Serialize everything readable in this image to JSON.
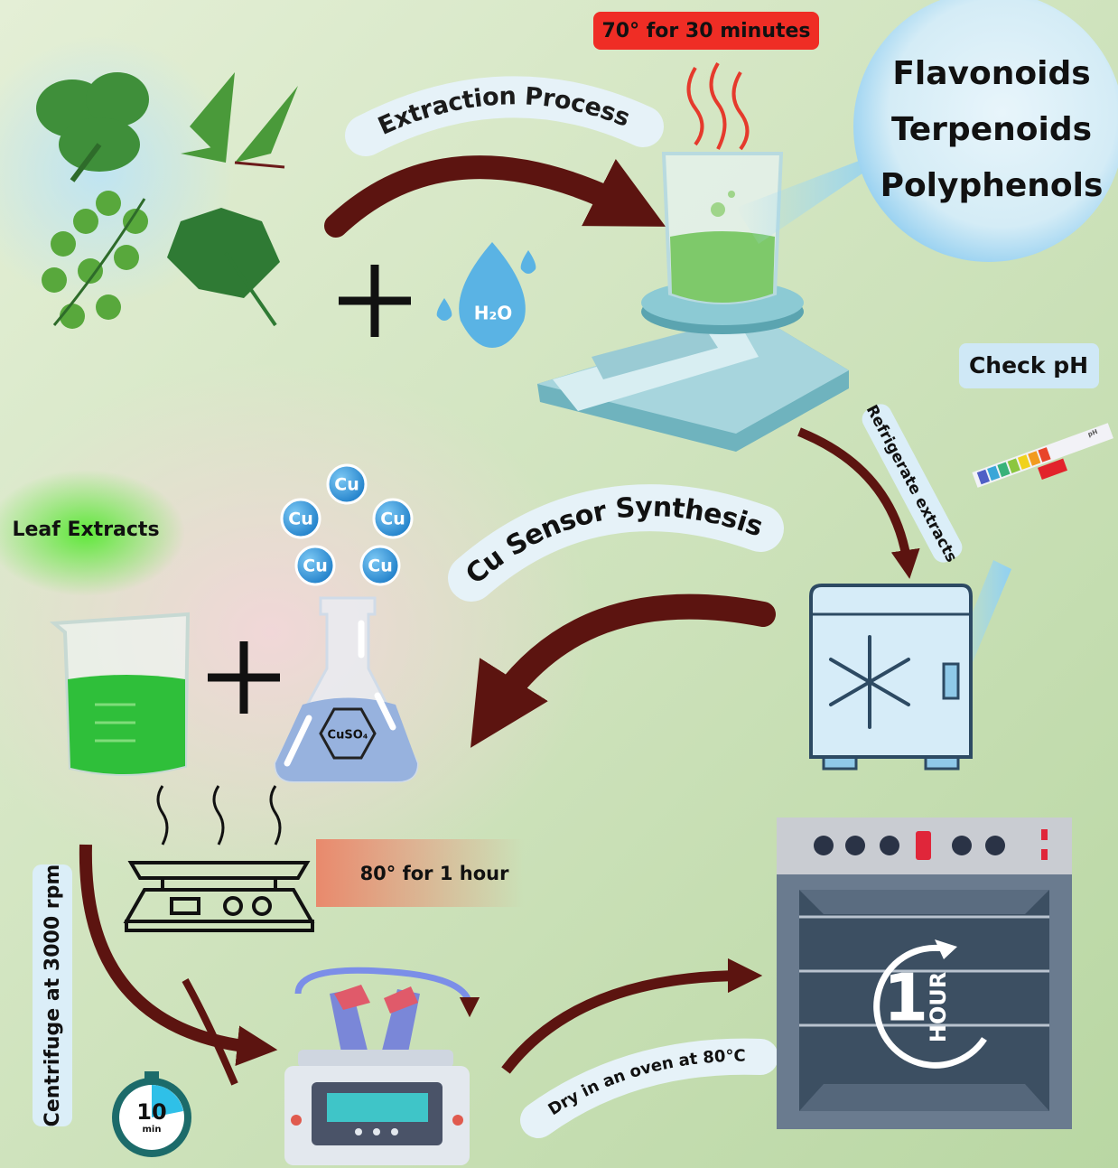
{
  "labels": {
    "heating": "70° for 30 minutes",
    "extraction": "Extraction Process",
    "water": "H₂O",
    "check_ph": "Check pH",
    "ph_strip": "pH",
    "refrigerate": "Refrigerate extracts",
    "synthesis": "Cu Sensor Synthesis",
    "leaf_extracts": "Leaf Extracts",
    "copper_sulfate": "CuSO₄",
    "heating2": "80° for 1 hour",
    "centrifuge": "Centrifuge at 3000 rpm",
    "dry": "Dry in an oven at 80°C"
  },
  "compounds": [
    "Flavonoids",
    "Terpenoids",
    "Polyphenols"
  ],
  "ions": [
    "Cu",
    "Cu",
    "Cu",
    "Cu",
    "Cu"
  ],
  "timer": {
    "value": "10",
    "unit": "min"
  },
  "oven_timer": {
    "value": "1",
    "unit": "HOUR"
  }
}
